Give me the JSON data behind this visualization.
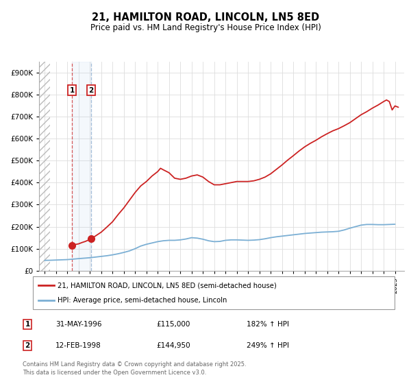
{
  "title": "21, HAMILTON ROAD, LINCOLN, LN5 8ED",
  "subtitle": "Price paid vs. HM Land Registry's House Price Index (HPI)",
  "hpi_line_color": "#7bafd4",
  "price_line_color": "#cc2222",
  "sale1_date_num": 1996.41,
  "sale1_price": 115000,
  "sale2_date_num": 1998.12,
  "sale2_price": 144950,
  "legend_line1": "21, HAMILTON ROAD, LINCOLN, LN5 8ED (semi-detached house)",
  "legend_line2": "HPI: Average price, semi-detached house, Lincoln",
  "table_row1": [
    "1",
    "31-MAY-1996",
    "£115,000",
    "182% ↑ HPI"
  ],
  "table_row2": [
    "2",
    "12-FEB-1998",
    "£144,950",
    "249% ↑ HPI"
  ],
  "footer": "Contains HM Land Registry data © Crown copyright and database right 2025.\nThis data is licensed under the Open Government Licence v3.0.",
  "ylim": [
    0,
    950000
  ],
  "xlim_left": 1993.5,
  "xlim_right": 2025.8,
  "hatch_end": 1994.5,
  "hpi_data": [
    [
      1994.0,
      47000
    ],
    [
      1994.5,
      47500
    ],
    [
      1995.0,
      48500
    ],
    [
      1995.5,
      49500
    ],
    [
      1996.0,
      50500
    ],
    [
      1996.5,
      52500
    ],
    [
      1997.0,
      55000
    ],
    [
      1997.5,
      57000
    ],
    [
      1998.0,
      59000
    ],
    [
      1998.5,
      62000
    ],
    [
      1999.0,
      65000
    ],
    [
      1999.5,
      68000
    ],
    [
      2000.0,
      72000
    ],
    [
      2000.5,
      77000
    ],
    [
      2001.0,
      83000
    ],
    [
      2001.5,
      90000
    ],
    [
      2002.0,
      100000
    ],
    [
      2002.5,
      112000
    ],
    [
      2003.0,
      120000
    ],
    [
      2003.5,
      126000
    ],
    [
      2004.0,
      132000
    ],
    [
      2004.5,
      136000
    ],
    [
      2005.0,
      138000
    ],
    [
      2005.5,
      138000
    ],
    [
      2006.0,
      140000
    ],
    [
      2006.5,
      144000
    ],
    [
      2007.0,
      150000
    ],
    [
      2007.5,
      148000
    ],
    [
      2008.0,
      143000
    ],
    [
      2008.5,
      136000
    ],
    [
      2009.0,
      132000
    ],
    [
      2009.5,
      133000
    ],
    [
      2010.0,
      138000
    ],
    [
      2010.5,
      140000
    ],
    [
      2011.0,
      140000
    ],
    [
      2011.5,
      139000
    ],
    [
      2012.0,
      138000
    ],
    [
      2012.5,
      139000
    ],
    [
      2013.0,
      141000
    ],
    [
      2013.5,
      145000
    ],
    [
      2014.0,
      150000
    ],
    [
      2014.5,
      154000
    ],
    [
      2015.0,
      157000
    ],
    [
      2015.5,
      160000
    ],
    [
      2016.0,
      163000
    ],
    [
      2016.5,
      166000
    ],
    [
      2017.0,
      169000
    ],
    [
      2017.5,
      171000
    ],
    [
      2018.0,
      173000
    ],
    [
      2018.5,
      175000
    ],
    [
      2019.0,
      176000
    ],
    [
      2019.5,
      177000
    ],
    [
      2020.0,
      179000
    ],
    [
      2020.5,
      185000
    ],
    [
      2021.0,
      193000
    ],
    [
      2021.5,
      200000
    ],
    [
      2022.0,
      207000
    ],
    [
      2022.5,
      210000
    ],
    [
      2023.0,
      210000
    ],
    [
      2023.5,
      209000
    ],
    [
      2024.0,
      209000
    ],
    [
      2024.5,
      210000
    ],
    [
      2025.0,
      211000
    ]
  ],
  "price_data": [
    [
      1996.41,
      115000
    ],
    [
      1996.6,
      118000
    ],
    [
      1997.0,
      122000
    ],
    [
      1997.3,
      128000
    ],
    [
      1997.6,
      133000
    ],
    [
      1998.12,
      144950
    ],
    [
      1998.5,
      158000
    ],
    [
      1999.0,
      175000
    ],
    [
      1999.5,
      198000
    ],
    [
      2000.0,
      222000
    ],
    [
      2000.5,
      255000
    ],
    [
      2001.0,
      285000
    ],
    [
      2001.5,
      320000
    ],
    [
      2002.0,
      355000
    ],
    [
      2002.5,
      385000
    ],
    [
      2003.0,
      405000
    ],
    [
      2003.5,
      430000
    ],
    [
      2004.0,
      450000
    ],
    [
      2004.25,
      465000
    ],
    [
      2004.5,
      458000
    ],
    [
      2005.0,
      445000
    ],
    [
      2005.5,
      420000
    ],
    [
      2006.0,
      415000
    ],
    [
      2006.5,
      420000
    ],
    [
      2007.0,
      430000
    ],
    [
      2007.5,
      435000
    ],
    [
      2008.0,
      425000
    ],
    [
      2008.5,
      405000
    ],
    [
      2009.0,
      390000
    ],
    [
      2009.5,
      390000
    ],
    [
      2010.0,
      395000
    ],
    [
      2010.5,
      400000
    ],
    [
      2011.0,
      405000
    ],
    [
      2011.5,
      405000
    ],
    [
      2012.0,
      405000
    ],
    [
      2012.5,
      408000
    ],
    [
      2013.0,
      415000
    ],
    [
      2013.5,
      425000
    ],
    [
      2014.0,
      440000
    ],
    [
      2014.5,
      460000
    ],
    [
      2015.0,
      480000
    ],
    [
      2015.5,
      502000
    ],
    [
      2016.0,
      522000
    ],
    [
      2016.5,
      543000
    ],
    [
      2017.0,
      562000
    ],
    [
      2017.5,
      578000
    ],
    [
      2018.0,
      592000
    ],
    [
      2018.5,
      608000
    ],
    [
      2019.0,
      622000
    ],
    [
      2019.5,
      635000
    ],
    [
      2020.0,
      645000
    ],
    [
      2020.5,
      658000
    ],
    [
      2021.0,
      672000
    ],
    [
      2021.5,
      690000
    ],
    [
      2022.0,
      708000
    ],
    [
      2022.5,
      722000
    ],
    [
      2023.0,
      738000
    ],
    [
      2023.5,
      752000
    ],
    [
      2024.0,
      768000
    ],
    [
      2024.25,
      775000
    ],
    [
      2024.5,
      768000
    ],
    [
      2024.75,
      730000
    ],
    [
      2025.0,
      748000
    ],
    [
      2025.3,
      742000
    ]
  ]
}
